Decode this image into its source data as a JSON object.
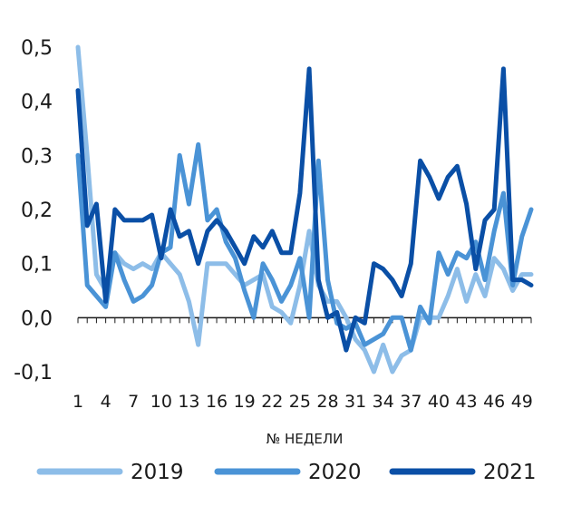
{
  "chart_data": {
    "type": "line",
    "title": "",
    "xlabel": "№ НЕДЕЛИ",
    "ylabel": "",
    "ylim": [
      -0.1,
      0.5
    ],
    "yticks": [
      "-0,1",
      "0,0",
      "0,1",
      "0,2",
      "0,3",
      "0,4",
      "0,5"
    ],
    "xtick_labels": [
      "1",
      "4",
      "7",
      "10",
      "13",
      "16",
      "19",
      "22",
      "25",
      "28",
      "31",
      "34",
      "37",
      "40",
      "43",
      "46",
      "49"
    ],
    "legend_position": "bottom",
    "series": [
      {
        "name": "2019",
        "color": "#8dbde8",
        "x": [
          1,
          2,
          3,
          4,
          5,
          6,
          7,
          8,
          9,
          10,
          11,
          12,
          13,
          14,
          15,
          16,
          17,
          18,
          19,
          20,
          21,
          22,
          23,
          24,
          25,
          26,
          27,
          28,
          29,
          30,
          31,
          32,
          33,
          34,
          35,
          36,
          37,
          38,
          39,
          40,
          41,
          42,
          43,
          44,
          45,
          46,
          47,
          48,
          49,
          50
        ],
        "values": [
          0.5,
          0.3,
          0.08,
          0.05,
          0.12,
          0.1,
          0.09,
          0.1,
          0.09,
          0.12,
          0.1,
          0.08,
          0.03,
          -0.05,
          0.1,
          0.1,
          0.1,
          0.08,
          0.06,
          0.07,
          0.08,
          0.02,
          0.01,
          -0.01,
          0.06,
          0.16,
          0.06,
          0.03,
          0.03,
          0.0,
          -0.04,
          -0.06,
          -0.1,
          -0.05,
          -0.1,
          -0.07,
          -0.06,
          0.0,
          0.0,
          0.0,
          0.04,
          0.09,
          0.03,
          0.08,
          0.04,
          0.11,
          0.09,
          0.05,
          0.08,
          0.08
        ]
      },
      {
        "name": "2020",
        "color": "#4a93d6",
        "x": [
          1,
          2,
          3,
          4,
          5,
          6,
          7,
          8,
          9,
          10,
          11,
          12,
          13,
          14,
          15,
          16,
          17,
          18,
          19,
          20,
          21,
          22,
          23,
          24,
          25,
          26,
          27,
          28,
          29,
          30,
          31,
          32,
          33,
          34,
          35,
          36,
          37,
          38,
          39,
          40,
          41,
          42,
          43,
          44,
          45,
          46,
          47,
          48,
          49,
          50
        ],
        "values": [
          0.3,
          0.06,
          0.04,
          0.02,
          0.12,
          0.07,
          0.03,
          0.04,
          0.06,
          0.12,
          0.13,
          0.3,
          0.21,
          0.32,
          0.18,
          0.2,
          0.14,
          0.11,
          0.05,
          0.0,
          0.1,
          0.07,
          0.03,
          0.06,
          0.11,
          0.0,
          0.29,
          0.07,
          -0.01,
          -0.02,
          -0.01,
          -0.05,
          -0.04,
          -0.03,
          0.0,
          0.0,
          -0.06,
          0.02,
          -0.01,
          0.12,
          0.08,
          0.12,
          0.11,
          0.14,
          0.07,
          0.16,
          0.23,
          0.06,
          0.15,
          0.2
        ]
      },
      {
        "name": "2021",
        "color": "#0a4fa6",
        "x": [
          1,
          2,
          3,
          4,
          5,
          6,
          7,
          8,
          9,
          10,
          11,
          12,
          13,
          14,
          15,
          16,
          17,
          18,
          19,
          20,
          21,
          22,
          23,
          24,
          25,
          26,
          27,
          28,
          29,
          30,
          31,
          32,
          33,
          34,
          35,
          36,
          37,
          38,
          39,
          40,
          41,
          42,
          43,
          44,
          45,
          46,
          47,
          48,
          49,
          50
        ],
        "values": [
          0.42,
          0.17,
          0.21,
          0.03,
          0.2,
          0.18,
          0.18,
          0.18,
          0.19,
          0.11,
          0.2,
          0.15,
          0.16,
          0.1,
          0.16,
          0.18,
          0.16,
          0.13,
          0.1,
          0.15,
          0.13,
          0.16,
          0.12,
          0.12,
          0.23,
          0.46,
          0.07,
          0.0,
          0.01,
          -0.06,
          0.0,
          -0.01,
          0.1,
          0.09,
          0.07,
          0.04,
          0.1,
          0.29,
          0.26,
          0.22,
          0.26,
          0.28,
          0.21,
          0.09,
          0.18,
          0.2,
          0.46,
          0.07,
          0.07,
          0.06
        ]
      }
    ]
  }
}
